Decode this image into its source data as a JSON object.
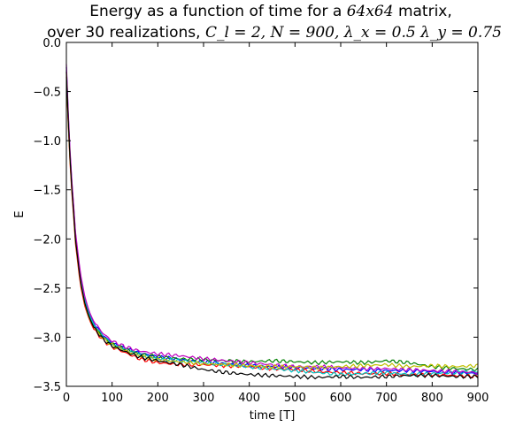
{
  "chart_data": {
    "type": "line",
    "title": {
      "line1_prefix": "Energy as a function of time for a ",
      "line1_math": "64x64",
      "line1_suffix": " matrix,",
      "line2_prefix": "over 30    realizations, ",
      "line2_math": "C_l = 2, N = 900, λ_x = 0.5 λ_y = 0.75"
    },
    "xlabel": "time [T]",
    "ylabel": "E",
    "xlim": [
      0,
      900
    ],
    "ylim": [
      -3.5,
      0.0
    ],
    "xticks": [
      0,
      100,
      200,
      300,
      400,
      500,
      600,
      700,
      800,
      900
    ],
    "yticks": [
      0.0,
      -0.5,
      -1.0,
      -1.5,
      -2.0,
      -2.5,
      -3.0,
      -3.5
    ],
    "xtick_labels": [
      "0",
      "100",
      "200",
      "300",
      "400",
      "500",
      "600",
      "700",
      "800",
      "900"
    ],
    "ytick_labels": [
      "0.0",
      "−0.5",
      "−1.0",
      "−1.5",
      "−2.0",
      "−2.5",
      "−3.0",
      "−3.5"
    ],
    "grid": false,
    "legend": "none",
    "series_colors": [
      "#0000ff",
      "#008000",
      "#ff0000",
      "#00bfbf",
      "#bf00bf",
      "#bfbf00",
      "#000000"
    ],
    "series": [
      {
        "x": [
          0,
          5,
          10,
          20,
          30,
          40,
          50,
          60,
          80,
          100,
          130,
          160,
          200,
          250,
          300,
          350,
          400,
          450,
          500,
          550,
          600,
          650,
          700,
          750,
          800,
          850,
          900
        ],
        "values": [
          -0.25,
          -0.85,
          -1.3,
          -1.95,
          -2.35,
          -2.6,
          -2.76,
          -2.86,
          -2.98,
          -3.06,
          -3.12,
          -3.16,
          -3.2,
          -3.23,
          -3.25,
          -3.27,
          -3.29,
          -3.3,
          -3.31,
          -3.32,
          -3.33,
          -3.33,
          -3.34,
          -3.34,
          -3.35,
          -3.36,
          -3.37
        ]
      },
      {
        "x": [
          0,
          5,
          10,
          20,
          30,
          40,
          50,
          60,
          80,
          100,
          130,
          160,
          200,
          250,
          300,
          350,
          400,
          450,
          500,
          550,
          600,
          650,
          700,
          750,
          800,
          850,
          900
        ],
        "values": [
          -0.3,
          -0.9,
          -1.35,
          -2.0,
          -2.4,
          -2.63,
          -2.78,
          -2.88,
          -3.0,
          -3.07,
          -3.12,
          -3.17,
          -3.2,
          -3.22,
          -3.23,
          -3.24,
          -3.25,
          -3.24,
          -3.25,
          -3.26,
          -3.25,
          -3.26,
          -3.24,
          -3.26,
          -3.3,
          -3.32,
          -3.33
        ]
      },
      {
        "x": [
          0,
          5,
          10,
          20,
          30,
          40,
          50,
          60,
          80,
          100,
          130,
          160,
          200,
          250,
          300,
          350,
          400,
          450,
          500,
          550,
          600,
          650,
          700,
          750,
          800,
          850,
          900
        ],
        "values": [
          -0.35,
          -0.95,
          -1.4,
          -2.05,
          -2.45,
          -2.68,
          -2.82,
          -2.92,
          -3.03,
          -3.1,
          -3.16,
          -3.22,
          -3.26,
          -3.28,
          -3.28,
          -3.29,
          -3.3,
          -3.32,
          -3.33,
          -3.35,
          -3.36,
          -3.37,
          -3.37,
          -3.38,
          -3.38,
          -3.39,
          -3.4
        ]
      },
      {
        "x": [
          0,
          5,
          10,
          20,
          30,
          40,
          50,
          60,
          80,
          100,
          130,
          160,
          200,
          250,
          300,
          350,
          400,
          450,
          500,
          550,
          600,
          650,
          700,
          750,
          800,
          850,
          900
        ],
        "values": [
          -0.28,
          -0.88,
          -1.33,
          -1.98,
          -2.38,
          -2.62,
          -2.77,
          -2.87,
          -2.99,
          -3.07,
          -3.13,
          -3.18,
          -3.22,
          -3.24,
          -3.26,
          -3.28,
          -3.3,
          -3.32,
          -3.34,
          -3.36,
          -3.38,
          -3.37,
          -3.36,
          -3.38,
          -3.37,
          -3.36,
          -3.35
        ]
      },
      {
        "x": [
          0,
          5,
          10,
          20,
          30,
          40,
          50,
          60,
          80,
          100,
          130,
          160,
          200,
          250,
          300,
          350,
          400,
          450,
          500,
          550,
          600,
          650,
          700,
          750,
          800,
          850,
          900
        ],
        "values": [
          -0.22,
          -0.82,
          -1.28,
          -1.93,
          -2.33,
          -2.58,
          -2.74,
          -2.84,
          -2.96,
          -3.04,
          -3.1,
          -3.14,
          -3.17,
          -3.19,
          -3.22,
          -3.24,
          -3.26,
          -3.28,
          -3.3,
          -3.3,
          -3.31,
          -3.32,
          -3.32,
          -3.33,
          -3.34,
          -3.35,
          -3.36
        ]
      },
      {
        "x": [
          0,
          5,
          10,
          20,
          30,
          40,
          50,
          60,
          80,
          100,
          130,
          160,
          200,
          250,
          300,
          350,
          400,
          450,
          500,
          550,
          600,
          650,
          700,
          750,
          800,
          850,
          900
        ],
        "values": [
          -0.32,
          -0.92,
          -1.37,
          -2.02,
          -2.42,
          -2.66,
          -2.81,
          -2.9,
          -3.01,
          -3.08,
          -3.14,
          -3.19,
          -3.23,
          -3.25,
          -3.27,
          -3.28,
          -3.29,
          -3.3,
          -3.3,
          -3.31,
          -3.3,
          -3.29,
          -3.28,
          -3.3,
          -3.29,
          -3.3,
          -3.29
        ]
      },
      {
        "x": [
          0,
          5,
          10,
          20,
          30,
          40,
          50,
          60,
          80,
          100,
          130,
          160,
          200,
          250,
          300,
          350,
          400,
          450,
          500,
          550,
          600,
          650,
          700,
          750,
          800,
          850,
          900
        ],
        "values": [
          -0.3,
          -0.9,
          -1.36,
          -2.01,
          -2.41,
          -2.65,
          -2.8,
          -2.9,
          -3.02,
          -3.09,
          -3.15,
          -3.2,
          -3.24,
          -3.28,
          -3.33,
          -3.36,
          -3.38,
          -3.39,
          -3.4,
          -3.41,
          -3.4,
          -3.41,
          -3.4,
          -3.39,
          -3.39,
          -3.4,
          -3.4
        ]
      }
    ]
  }
}
